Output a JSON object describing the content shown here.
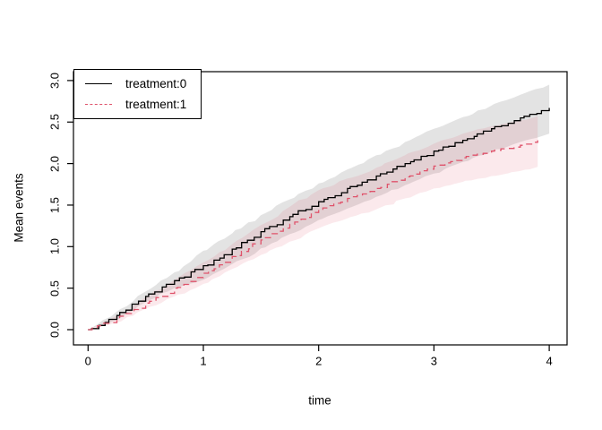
{
  "chart_data": {
    "type": "line",
    "title": "",
    "xlabel": "time",
    "ylabel": "Mean events",
    "xlim": [
      0,
      4
    ],
    "ylim": [
      0,
      3
    ],
    "grid": false,
    "x_ticks": [
      "0",
      "1",
      "2",
      "3",
      "4"
    ],
    "y_ticks": [
      "0.0",
      "0.5",
      "1.0",
      "1.5",
      "2.0",
      "2.5",
      "3.0"
    ],
    "legend_position": "top-left",
    "series": [
      {
        "name": "treatment:0",
        "color": "#000000",
        "line_style": "solid",
        "x": [
          0,
          0.25,
          0.5,
          0.75,
          1,
          1.25,
          1.5,
          1.75,
          2,
          2.25,
          2.5,
          2.75,
          3,
          3.25,
          3.5,
          3.75,
          4
        ],
        "y": [
          0,
          0.17,
          0.4,
          0.59,
          0.77,
          0.97,
          1.18,
          1.36,
          1.54,
          1.7,
          1.85,
          2.0,
          2.15,
          2.28,
          2.42,
          2.55,
          2.67
        ],
        "band": {
          "color": "rgba(0,0,0,0.11)",
          "lower": [
            0,
            0.12,
            0.33,
            0.5,
            0.6,
            0.79,
            0.98,
            1.15,
            1.32,
            1.46,
            1.6,
            1.74,
            1.88,
            2.02,
            2.15,
            2.26,
            2.36
          ],
          "upper": [
            0,
            0.22,
            0.46,
            0.69,
            0.95,
            1.16,
            1.38,
            1.57,
            1.76,
            1.93,
            2.1,
            2.26,
            2.42,
            2.56,
            2.7,
            2.83,
            2.95
          ]
        }
      },
      {
        "name": "treatment:1",
        "color": "#DF536B",
        "line_style": "dashed",
        "x": [
          0,
          0.25,
          0.5,
          0.75,
          1,
          1.25,
          1.5,
          1.75,
          2,
          2.25,
          2.5,
          2.75,
          3,
          3.25,
          3.5,
          3.75,
          3.9
        ],
        "y": [
          0,
          0.13,
          0.32,
          0.5,
          0.68,
          0.88,
          1.08,
          1.27,
          1.45,
          1.58,
          1.7,
          1.84,
          1.97,
          2.07,
          2.15,
          2.22,
          2.28
        ],
        "band": {
          "color": "rgba(223,83,107,0.13)",
          "lower": [
            0,
            0.09,
            0.25,
            0.4,
            0.55,
            0.73,
            0.9,
            1.06,
            1.22,
            1.34,
            1.45,
            1.58,
            1.7,
            1.78,
            1.85,
            1.91,
            1.96
          ],
          "upper": [
            0,
            0.17,
            0.39,
            0.6,
            0.81,
            1.03,
            1.26,
            1.48,
            1.68,
            1.82,
            1.95,
            2.1,
            2.24,
            2.36,
            2.45,
            2.52,
            2.57
          ]
        }
      }
    ]
  }
}
